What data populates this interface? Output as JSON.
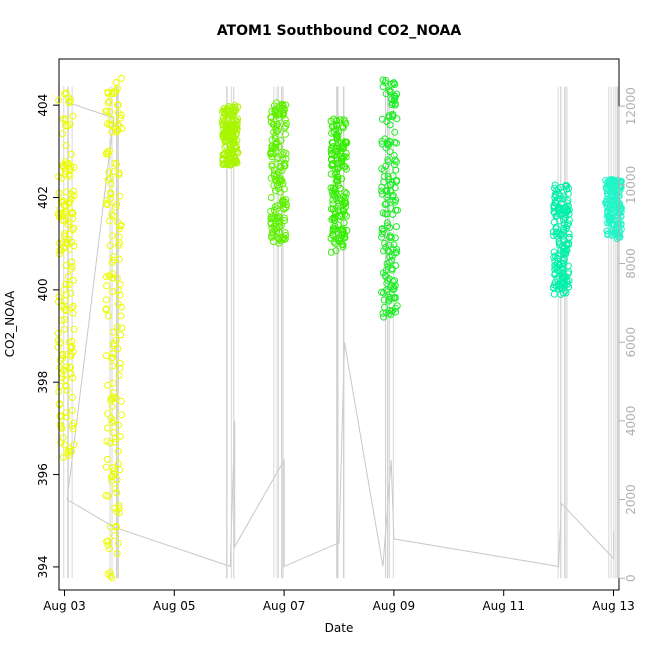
{
  "chart_data": {
    "type": "scatter",
    "title": "ATOM1 Southbound CO2_NOAA",
    "xlabel": "Date",
    "ylabel": "CO2_NOAA",
    "x_range_days": [
      2.9,
      13.1
    ],
    "ylim": [
      393.5,
      405.0
    ],
    "y2lim": [
      -300,
      13200
    ],
    "x_ticks": [
      {
        "day": 3,
        "label": "Aug 03"
      },
      {
        "day": 5,
        "label": "Aug 05"
      },
      {
        "day": 7,
        "label": "Aug 07"
      },
      {
        "day": 9,
        "label": "Aug 09"
      },
      {
        "day": 11,
        "label": "Aug 11"
      },
      {
        "day": 13,
        "label": "Aug 13"
      }
    ],
    "y_ticks": [
      394,
      396,
      398,
      400,
      402,
      404
    ],
    "y2_ticks": [
      0,
      2000,
      4000,
      6000,
      8000,
      10000,
      12000
    ],
    "grid": false,
    "legend": "none",
    "point_series": [
      {
        "day": 3.03,
        "y_min": 396.3,
        "y_max": 404.3,
        "color": "#ecfc00"
      },
      {
        "day": 3.9,
        "y_min": 393.7,
        "y_max": 404.7,
        "color": "#ecfc00"
      },
      {
        "day": 6.02,
        "y_min": 402.7,
        "y_max": 404.0,
        "color": "#a8f500"
      },
      {
        "day": 6.9,
        "y_min": 401.0,
        "y_max": 404.1,
        "color": "#5ff000"
      },
      {
        "day": 8.0,
        "y_min": 400.8,
        "y_max": 403.7,
        "color": "#33ee00"
      },
      {
        "day": 8.92,
        "y_min": 399.4,
        "y_max": 404.6,
        "color": "#1fec28"
      },
      {
        "day": 12.05,
        "y_min": 399.9,
        "y_max": 402.3,
        "color": "#00f0a8"
      },
      {
        "day": 13.0,
        "y_min": 401.1,
        "y_max": 402.4,
        "color": "#22f5c8"
      }
    ],
    "altitude_line": [
      [
        3.02,
        12100
      ],
      [
        3.05,
        12100
      ],
      [
        3.9,
        11700
      ],
      [
        3.05,
        2000
      ],
      [
        3.9,
        1300
      ],
      [
        6.02,
        300
      ],
      [
        6.1,
        4000
      ],
      [
        6.1,
        800
      ],
      [
        7.0,
        3000
      ],
      [
        7.0,
        300
      ],
      [
        8.0,
        900
      ],
      [
        8.1,
        6000
      ],
      [
        8.8,
        300
      ],
      [
        8.95,
        3000
      ],
      [
        9.0,
        1000
      ],
      [
        12.0,
        300
      ],
      [
        12.05,
        1900
      ],
      [
        13.0,
        500
      ],
      [
        13.0,
        1200
      ]
    ]
  }
}
